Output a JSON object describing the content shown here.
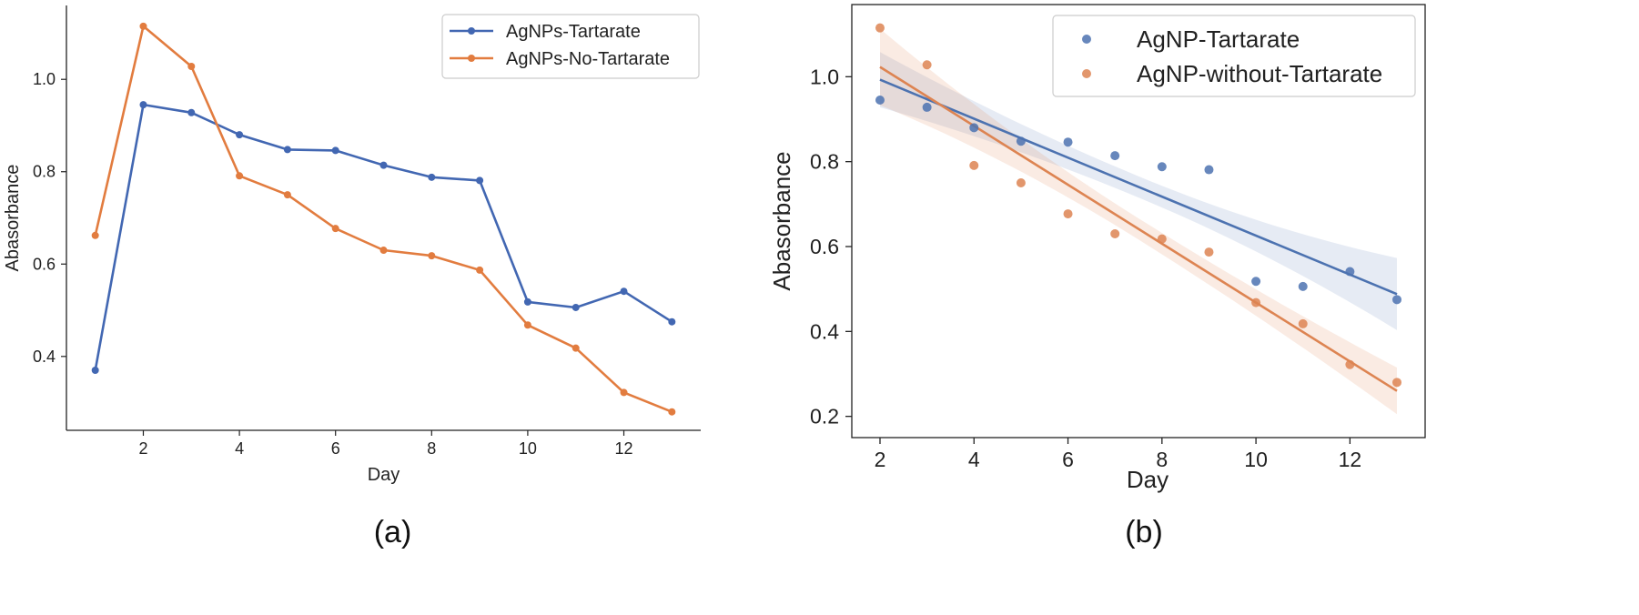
{
  "chart_data": [
    {
      "type": "line",
      "caption": "(a)",
      "xlabel": "Day",
      "ylabel": "Abasorbance",
      "xlim": [
        0.4,
        13.6
      ],
      "ylim": [
        0.24,
        1.16
      ],
      "xticks": [
        2,
        4,
        6,
        8,
        10,
        12
      ],
      "yticks": [
        0.4,
        0.6,
        0.8,
        1.0
      ],
      "xtick_labels": [
        "2",
        "4",
        "6",
        "8",
        "10",
        "12"
      ],
      "ytick_labels": [
        "0.4",
        "0.6",
        "0.8",
        "1.0"
      ],
      "legend_position": "top-right",
      "x": [
        1,
        2,
        3,
        4,
        5,
        6,
        7,
        8,
        9,
        10,
        11,
        12,
        13
      ],
      "series": [
        {
          "name": "AgNPs-Tartarate",
          "color": "#4267b2",
          "values": [
            0.37,
            0.945,
            0.928,
            0.88,
            0.848,
            0.846,
            0.814,
            0.788,
            0.781,
            0.518,
            0.506,
            0.541,
            0.475
          ]
        },
        {
          "name": "AgNPs-No-Tartarate",
          "color": "#e27c3f",
          "values": [
            0.662,
            1.115,
            1.028,
            0.791,
            0.75,
            0.677,
            0.63,
            0.618,
            0.587,
            0.468,
            0.418,
            0.322,
            0.28
          ]
        }
      ]
    },
    {
      "type": "scatter",
      "caption": "(b)",
      "xlabel": "Day",
      "ylabel": "Abasorbance",
      "xlim": [
        1.4,
        13.6
      ],
      "ylim": [
        0.15,
        1.17
      ],
      "xticks": [
        2,
        4,
        6,
        8,
        10,
        12
      ],
      "yticks": [
        0.2,
        0.4,
        0.6,
        0.8,
        1.0
      ],
      "xtick_labels": [
        "2",
        "4",
        "6",
        "8",
        "10",
        "12"
      ],
      "ytick_labels": [
        "0.2",
        "0.4",
        "0.6",
        "0.8",
        "1.0"
      ],
      "legend_position": "top-right",
      "regression": true,
      "x": [
        2,
        3,
        4,
        5,
        6,
        7,
        8,
        9,
        10,
        11,
        12,
        13
      ],
      "series": [
        {
          "name": "AgNP-Tartarate",
          "color": "#4c72b0",
          "values": [
            0.945,
            0.928,
            0.88,
            0.848,
            0.846,
            0.814,
            0.788,
            0.781,
            0.518,
            0.506,
            0.541,
            0.475
          ],
          "fit_start": 0.993,
          "fit_end": 0.488,
          "ci_half_width_start": 0.065,
          "ci_half_width_mid": 0.025,
          "ci_half_width_end": 0.085
        },
        {
          "name": "AgNP-without-Tartarate",
          "color": "#dd8452",
          "values": [
            1.115,
            1.028,
            0.791,
            0.75,
            0.677,
            0.63,
            0.618,
            0.587,
            0.468,
            0.418,
            0.322,
            0.28
          ],
          "fit_start": 1.023,
          "fit_end": 0.26,
          "ci_half_width_start": 0.09,
          "ci_half_width_mid": 0.025,
          "ci_half_width_end": 0.055
        }
      ]
    }
  ]
}
